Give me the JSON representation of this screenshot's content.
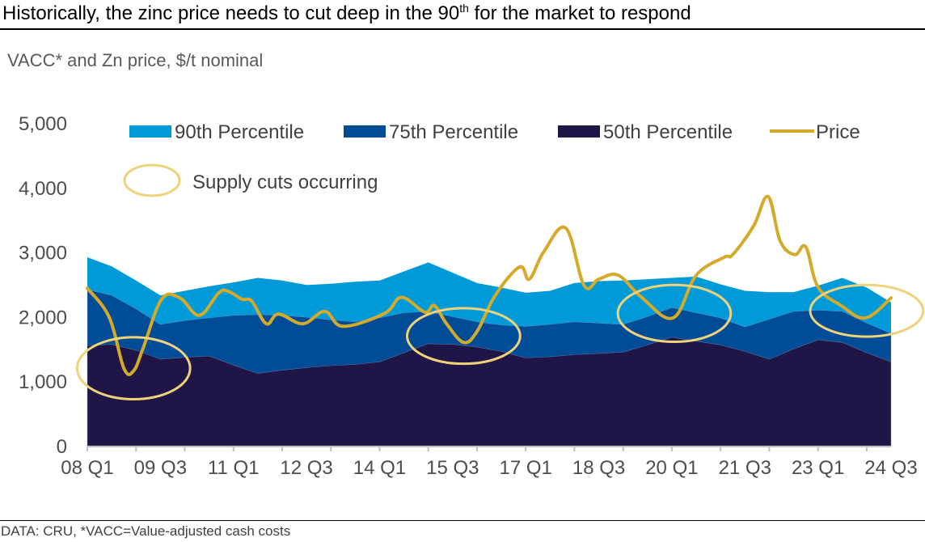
{
  "header": {
    "title_main": "Historically, the zinc price needs to cut deep in the 90",
    "title_sup": "th",
    "title_end": " for the market to respond",
    "subtitle": "VACC* and Zn price, $/t nominal"
  },
  "footer": {
    "source": "DATA: CRU, *VACC=Value-adjusted cash costs"
  },
  "colors": {
    "p90": "#009ad9",
    "p75": "#004c97",
    "p50": "#1f1647",
    "price": "#d4aa2a",
    "supply_cut": "#efd27a",
    "axis": "#bfbfbf"
  },
  "chart_data": {
    "type": "area",
    "title": "Historically, the zinc price needs to cut deep in the 90th for the market to respond",
    "subtitle": "VACC* and Zn price, $/t nominal",
    "xlabel": "",
    "ylabel": "$/t nominal",
    "ylim": [
      0,
      5000
    ],
    "yticks": [
      0,
      1000,
      2000,
      3000,
      4000,
      5000
    ],
    "ytick_labels": [
      "0",
      "1,000",
      "2,000",
      "3,000",
      "4,000",
      "5,000"
    ],
    "x_unit": "quarter index from 08 Q1",
    "xlim": [
      0,
      66
    ],
    "xtick_labels": [
      {
        "q": 0,
        "label": "08 Q1"
      },
      {
        "q": 6,
        "label": "09 Q3"
      },
      {
        "q": 12,
        "label": "11 Q1"
      },
      {
        "q": 18,
        "label": "12 Q3"
      },
      {
        "q": 24,
        "label": "14 Q1"
      },
      {
        "q": 30,
        "label": "15 Q3"
      },
      {
        "q": 36,
        "label": "17 Q1"
      },
      {
        "q": 42,
        "label": "18 Q3"
      },
      {
        "q": 48,
        "label": "20 Q1"
      },
      {
        "q": 54,
        "label": "21 Q3"
      },
      {
        "q": 60,
        "label": "23 Q1"
      },
      {
        "q": 66,
        "label": "24 Q3"
      }
    ],
    "minor_tick_every_quarters": 4,
    "grid": false,
    "legend_position": "top",
    "x": [
      0,
      2,
      4,
      6,
      8,
      10,
      12,
      14,
      16,
      18,
      20,
      22,
      24,
      26,
      28,
      30,
      32,
      34,
      36,
      38,
      40,
      42,
      44,
      46,
      48,
      50,
      52,
      54,
      56,
      58,
      60,
      62,
      64,
      66
    ],
    "series": [
      {
        "name": "90th Percentile",
        "kind": "area",
        "color_key": "p90",
        "values": [
          2920,
          2780,
          2560,
          2330,
          2400,
          2470,
          2530,
          2600,
          2560,
          2490,
          2510,
          2540,
          2560,
          2700,
          2840,
          2680,
          2520,
          2450,
          2370,
          2400,
          2520,
          2550,
          2560,
          2580,
          2600,
          2620,
          2500,
          2400,
          2380,
          2380,
          2480,
          2600,
          2450,
          2220
        ]
      },
      {
        "name": "75th Percentile",
        "kind": "area",
        "color_key": "p75",
        "values": [
          2420,
          2330,
          2120,
          1880,
          1940,
          1980,
          2020,
          2030,
          2020,
          1990,
          1950,
          1920,
          1980,
          2060,
          2080,
          2000,
          1920,
          1870,
          1850,
          1880,
          1920,
          1900,
          1880,
          2000,
          2140,
          2060,
          1980,
          1840,
          1960,
          2080,
          2100,
          2080,
          1900,
          1740
        ]
      },
      {
        "name": "50th Percentile",
        "kind": "area",
        "color_key": "p50",
        "values": [
          1550,
          1570,
          1480,
          1340,
          1370,
          1390,
          1250,
          1120,
          1170,
          1210,
          1240,
          1260,
          1300,
          1440,
          1580,
          1570,
          1530,
          1460,
          1360,
          1380,
          1410,
          1430,
          1450,
          1560,
          1680,
          1620,
          1560,
          1460,
          1340,
          1500,
          1640,
          1600,
          1440,
          1300
        ]
      },
      {
        "name": "Price",
        "kind": "line",
        "color_key": "price",
        "points": [
          [
            0,
            2440
          ],
          [
            1.8,
            1990
          ],
          [
            3,
            1200
          ],
          [
            3.8,
            1160
          ],
          [
            4.6,
            1520
          ],
          [
            6.1,
            2270
          ],
          [
            7.6,
            2290
          ],
          [
            9.2,
            2020
          ],
          [
            10.8,
            2370
          ],
          [
            11.6,
            2390
          ],
          [
            12.7,
            2270
          ],
          [
            13.5,
            2240
          ],
          [
            14.7,
            1890
          ],
          [
            15.7,
            2040
          ],
          [
            17.7,
            1890
          ],
          [
            19.5,
            2080
          ],
          [
            21,
            1850
          ],
          [
            24.4,
            2050
          ],
          [
            25.8,
            2300
          ],
          [
            27.7,
            2070
          ],
          [
            28.5,
            2170
          ],
          [
            29.5,
            1890
          ],
          [
            30.9,
            1600
          ],
          [
            32,
            1770
          ],
          [
            33.5,
            2330
          ],
          [
            35.5,
            2770
          ],
          [
            36.3,
            2580
          ],
          [
            37.5,
            3010
          ],
          [
            39.3,
            3370
          ],
          [
            40.8,
            2480
          ],
          [
            42,
            2580
          ],
          [
            43.6,
            2640
          ],
          [
            45.5,
            2300
          ],
          [
            48.1,
            1980
          ],
          [
            50,
            2640
          ],
          [
            52.3,
            2920
          ],
          [
            53,
            2960
          ],
          [
            54.7,
            3400
          ],
          [
            55.9,
            3860
          ],
          [
            56.9,
            3170
          ],
          [
            58.1,
            2960
          ],
          [
            59,
            3080
          ],
          [
            60,
            2460
          ],
          [
            61.9,
            2170
          ],
          [
            63.9,
            1980
          ],
          [
            66,
            2290
          ]
        ]
      }
    ],
    "annotations": [
      {
        "type": "ellipse",
        "label": "Supply cuts occurring",
        "center_q": 3.8,
        "center_value": 1200,
        "rx_quarters": 3.2,
        "ry_value": 480
      },
      {
        "type": "ellipse",
        "label": "Supply cuts occurring",
        "center_q": 30.9,
        "center_value": 1700,
        "rx_quarters": 3.2,
        "ry_value": 430
      },
      {
        "type": "ellipse",
        "label": "Supply cuts occurring",
        "center_q": 48.2,
        "center_value": 2050,
        "rx_quarters": 3.2,
        "ry_value": 440
      },
      {
        "type": "ellipse",
        "label": "Supply cuts occurring",
        "center_q": 64,
        "center_value": 2090,
        "rx_quarters": 3.2,
        "ry_value": 400
      }
    ],
    "legend": [
      {
        "label": "90th Percentile",
        "swatch": "box",
        "color_key": "p90"
      },
      {
        "label": "75th Percentile",
        "swatch": "box",
        "color_key": "p75"
      },
      {
        "label": "50th Percentile",
        "swatch": "box",
        "color_key": "p50"
      },
      {
        "label": "Price",
        "swatch": "line",
        "color_key": "price"
      },
      {
        "label": "Supply cuts occurring",
        "swatch": "ellipse",
        "color_key": "supply_cut"
      }
    ]
  }
}
